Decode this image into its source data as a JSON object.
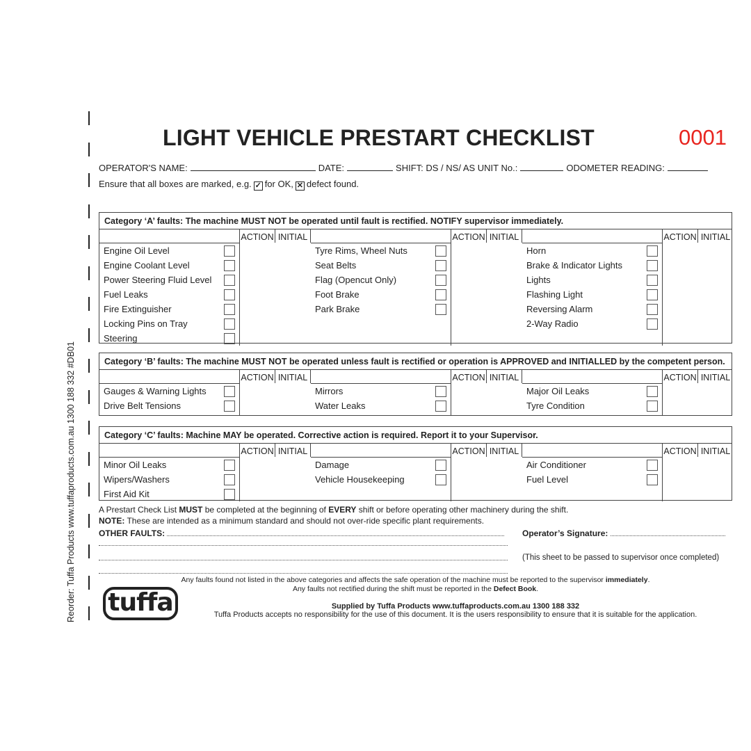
{
  "header": {
    "title": "LIGHT VEHICLE PRESTART CHECKLIST",
    "serial": "0001",
    "serial_color": "#e8251f",
    "operator_label": "OPERATOR'S NAME:",
    "date_label": "DATE:",
    "shift_label": "SHIFT: DS / NS/ AS UNIT No.:",
    "odometer_label": "ODOMETER READING:",
    "ensure_text": "Ensure that all boxes are marked, e.g.",
    "ok_text": "for OK,",
    "defect_text": "defect found."
  },
  "col_action": "ACTION",
  "col_initial": "INITIAL",
  "sections": [
    {
      "heading": "Category ‘A’ faults: The machine MUST NOT be operated until fault is rectified. NOTIFY supervisor immediately.",
      "groups": [
        [
          "Engine Oil Level",
          "Engine Coolant Level",
          "Power Steering Fluid Level",
          "Fuel Leaks",
          "Fire Extinguisher",
          "Locking Pins on Tray",
          "Steering"
        ],
        [
          "Tyre Rims, Wheel Nuts",
          "Seat Belts",
          "Flag (Opencut Only)",
          "Foot Brake",
          "Park Brake"
        ],
        [
          "Horn",
          "Brake & Indicator Lights",
          "Lights",
          "Flashing Light",
          "Reversing Alarm",
          "2-Way Radio"
        ]
      ]
    },
    {
      "heading": "Category ‘B’ faults: The machine MUST NOT be operated unless fault is rectified or operation is APPROVED and INITIALLED by the competent person.",
      "groups": [
        [
          "Gauges & Warning Lights",
          "Drive Belt Tensions"
        ],
        [
          "Mirrors",
          "Water Leaks"
        ],
        [
          "Major Oil Leaks",
          "Tyre Condition"
        ]
      ]
    },
    {
      "heading": "Category ‘C’ faults: Machine MAY be operated. Corrective action is required. Report it to your Supervisor.",
      "groups": [
        [
          "Minor Oil Leaks",
          "Wipers/Washers",
          "First Aid Kit"
        ],
        [
          "Damage",
          "Vehicle Housekeeping"
        ],
        [
          "Air Conditioner",
          "Fuel Level"
        ]
      ]
    }
  ],
  "footer": {
    "must_pre": "A Prestart Check List ",
    "must_b1": "MUST",
    "must_mid": " be completed at the beginning of ",
    "must_b2": "EVERY",
    "must_post": " shift or before operating other machinery during the shift.",
    "note_b": "NOTE:",
    "note": " These are intended as a minimum standard and should not over-ride specific plant requirements.",
    "other_faults": "OTHER FAULTS:",
    "signature": "Operator’s Signature:",
    "pass_note": "(This sheet to be passed to supervisor once completed)",
    "any1": "Any faults found not listed in the above categories and affects the safe operation of the machine must be reported to the supervisor ",
    "any1_b": "immediately",
    "any2": "Any faults not rectified during the shift must be reported in the ",
    "any2_b": "Defect Book",
    "supplied": "Supplied by Tuffa Products  www.tuffaproducts.com.au  1300 188 332",
    "disclaimer": "Tuffa Products accepts no responsibility for the use of this document. It is the users responsibility to ensure that it is suitable for the application.",
    "logo": "tuffa"
  },
  "side_text": "Reorder: Tuffa Products www.tuffaproducts.com.au 1300 188 332 #DB01"
}
